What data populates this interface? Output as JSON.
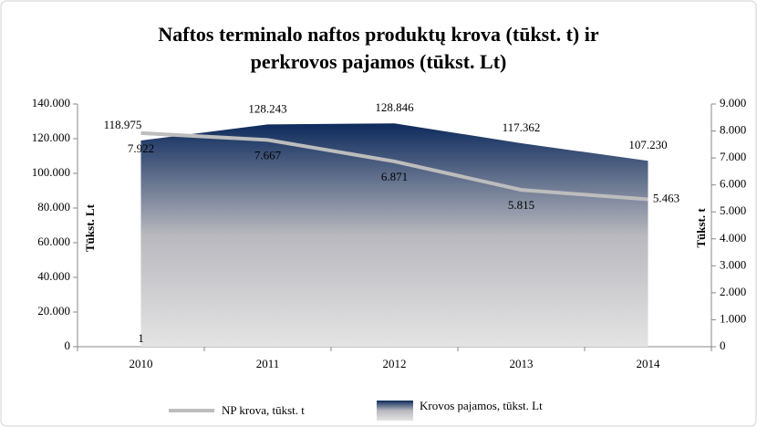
{
  "chart_data": {
    "type": "area-line",
    "title": [
      "Naftos terminalo naftos produktų krova (tūkst. t)  ir",
      "perkrovos pajamos (tūkst. Lt)"
    ],
    "y_label": "Tūkst. Lt",
    "y2_label": "Tūkst. t",
    "annotation": "1",
    "categories": [
      "2010",
      "2011",
      "2012",
      "2013",
      "2014"
    ],
    "series": [
      {
        "name": "Krovos pajamos, tūkst. Lt",
        "kind": "area",
        "color": "#0d2a5c",
        "values": [
          118975,
          128243,
          128846,
          117362,
          107230
        ],
        "value_labels": [
          "118.975",
          "128.243",
          "128.846",
          "117.362",
          "107.230"
        ]
      },
      {
        "name": "NP krova, tūkst. t",
        "kind": "line",
        "axis": "y2",
        "color": "#bdbdbd",
        "values": [
          7922,
          7667,
          6871,
          5815,
          5463
        ],
        "value_labels": [
          "7.922",
          "7.667",
          "6.871",
          "5.815",
          "5.463"
        ]
      }
    ],
    "ylim": [
      0,
      140000
    ],
    "yticks": [
      0,
      {
        "value": 20000,
        "label": "20.000"
      },
      {
        "value": 40000,
        "label": "40.000"
      },
      {
        "value": 60000,
        "label": "60.000"
      },
      {
        "value": 80000,
        "label": "80.000"
      },
      {
        "value": 100000,
        "label": "100.000"
      },
      {
        "value": 120000,
        "label": "120.000"
      },
      {
        "value": 140000,
        "label": "140.000"
      }
    ],
    "y2lim": [
      0,
      9000
    ],
    "y2ticks": [
      0,
      {
        "value": 1000,
        "label": "1.000"
      },
      {
        "value": 2000,
        "label": "2.000"
      },
      {
        "value": 3000,
        "label": "3.000"
      },
      {
        "value": 4000,
        "label": "4.000"
      },
      {
        "value": 5000,
        "label": "5.000"
      },
      {
        "value": 6000,
        "label": "6.000"
      },
      {
        "value": 7000,
        "label": "7.000"
      },
      {
        "value": 8000,
        "label": "8.000"
      },
      {
        "value": 9000,
        "label": "9.000"
      }
    ],
    "grid": false
  }
}
